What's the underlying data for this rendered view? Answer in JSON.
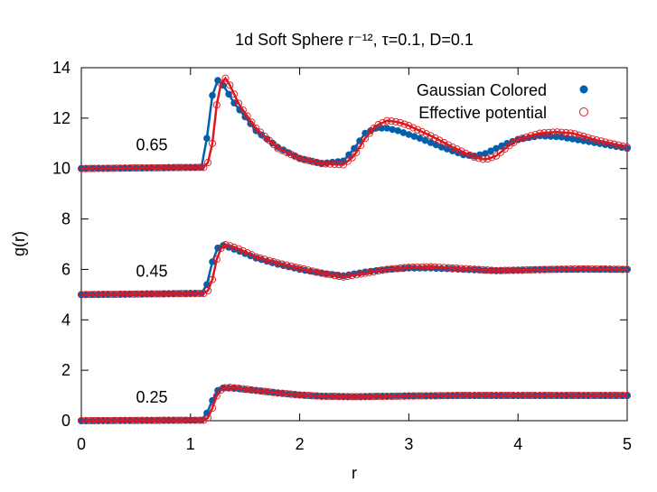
{
  "chart_data": {
    "type": "scatter",
    "title": "1d Soft Sphere r⁻¹², τ=0.1, D=0.1",
    "xlabel": "r",
    "ylabel": "g(r)",
    "xlim": [
      0,
      5
    ],
    "ylim": [
      0,
      14
    ],
    "xticks": [
      "0",
      "1",
      "2",
      "3",
      "4",
      "5"
    ],
    "yticks": [
      "0",
      "2",
      "4",
      "6",
      "8",
      "10",
      "12",
      "14"
    ],
    "grid": false,
    "legend_position": "top-right",
    "series": [
      {
        "name": "Gaussian Colored",
        "marker": "filled-circle",
        "color": "#0060ad",
        "curves": [
          {
            "label": "0.65",
            "x": [
              0,
              1.1,
              1.15,
              1.2,
              1.25,
              1.3,
              1.4,
              1.6,
              1.8,
              2.0,
              2.2,
              2.4,
              2.5,
              2.6,
              2.7,
              2.8,
              2.9,
              3.1,
              3.3,
              3.5,
              3.6,
              3.7,
              3.8,
              3.9,
              4.0,
              4.2,
              4.4,
              4.6,
              4.8,
              5.0
            ],
            "y": [
              10.0,
              10.05,
              11.2,
              12.9,
              13.5,
              13.3,
              12.6,
              11.5,
              10.85,
              10.4,
              10.2,
              10.3,
              10.8,
              11.4,
              11.6,
              11.6,
              11.5,
              11.2,
              10.85,
              10.55,
              10.5,
              10.6,
              10.8,
              11.0,
              11.15,
              11.3,
              11.25,
              11.1,
              10.95,
              10.8
            ]
          },
          {
            "label": "0.45",
            "x": [
              0,
              1.1,
              1.15,
              1.2,
              1.25,
              1.3,
              1.4,
              1.6,
              1.8,
              2.0,
              2.2,
              2.4,
              2.6,
              2.8,
              3.0,
              3.2,
              3.5,
              3.8,
              4.0,
              4.3,
              4.6,
              5.0
            ],
            "y": [
              5.0,
              5.05,
              5.4,
              6.3,
              6.85,
              6.95,
              6.8,
              6.45,
              6.2,
              6.0,
              5.85,
              5.75,
              5.9,
              6.0,
              6.05,
              6.05,
              6.0,
              5.95,
              5.97,
              6.0,
              6.0,
              6.0
            ]
          },
          {
            "label": "0.25",
            "x": [
              0,
              1.1,
              1.15,
              1.2,
              1.25,
              1.3,
              1.4,
              1.6,
              1.8,
              2.0,
              2.2,
              2.5,
              3.0,
              3.5,
              4.0,
              4.5,
              5.0
            ],
            "y": [
              0.0,
              0.02,
              0.3,
              0.8,
              1.2,
              1.3,
              1.28,
              1.2,
              1.1,
              1.02,
              0.97,
              0.95,
              0.98,
              1.0,
              1.0,
              1.0,
              1.0
            ]
          }
        ]
      },
      {
        "name": "Effective potential",
        "marker": "open-circle",
        "color": "#dd181f",
        "curves": [
          {
            "x": [
              0,
              1.15,
              1.2,
              1.25,
              1.3,
              1.35,
              1.45,
              1.6,
              1.8,
              2.0,
              2.2,
              2.4,
              2.5,
              2.6,
              2.7,
              2.8,
              2.9,
              3.0,
              3.2,
              3.4,
              3.6,
              3.7,
              3.8,
              3.9,
              4.0,
              4.2,
              4.35,
              4.5,
              4.7,
              4.9,
              5.0
            ],
            "y": [
              10.0,
              10.05,
              11.0,
              12.9,
              13.7,
              13.4,
              12.5,
              11.6,
              10.8,
              10.4,
              10.2,
              10.15,
              10.5,
              11.2,
              11.7,
              11.9,
              11.85,
              11.7,
              11.3,
              10.85,
              10.45,
              10.35,
              10.5,
              10.85,
              11.15,
              11.4,
              11.45,
              11.4,
              11.15,
              10.95,
              10.85
            ]
          },
          {
            "x": [
              0,
              1.15,
              1.2,
              1.25,
              1.3,
              1.35,
              1.45,
              1.6,
              1.8,
              2.0,
              2.2,
              2.4,
              2.6,
              2.8,
              3.0,
              3.2,
              3.5,
              3.8,
              4.0,
              4.3,
              4.6,
              5.0
            ],
            "y": [
              5.0,
              5.05,
              5.6,
              6.6,
              7.0,
              6.95,
              6.8,
              6.5,
              6.25,
              6.05,
              5.85,
              5.7,
              5.85,
              6.0,
              6.08,
              6.1,
              6.03,
              5.95,
              5.97,
              6.0,
              6.02,
              6.0
            ]
          },
          {
            "x": [
              0,
              1.15,
              1.2,
              1.25,
              1.3,
              1.35,
              1.45,
              1.6,
              1.8,
              2.0,
              2.2,
              2.5,
              3.0,
              3.5,
              4.0,
              4.5,
              5.0
            ],
            "y": [
              0.0,
              0.02,
              0.5,
              1.1,
              1.3,
              1.32,
              1.28,
              1.2,
              1.1,
              1.02,
              0.97,
              0.95,
              0.98,
              1.0,
              1.0,
              1.0,
              1.0
            ]
          }
        ]
      }
    ]
  }
}
